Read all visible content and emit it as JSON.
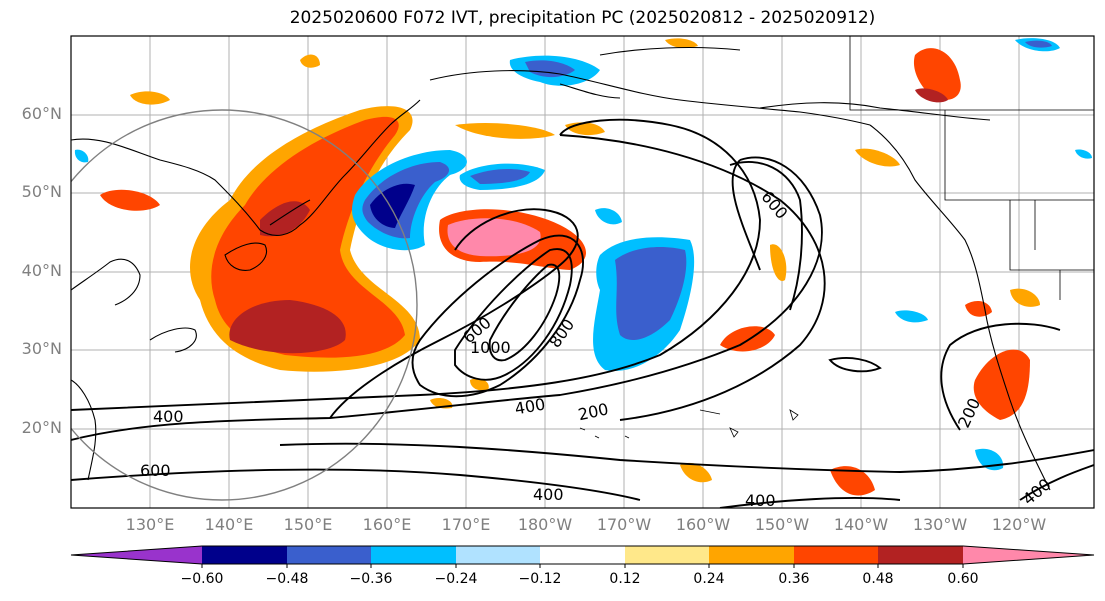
{
  "title": "2025020600 F072 IVT, precipitation PC (2025020812 - 2025020912)",
  "map": {
    "lat_labels": [
      "60°N",
      "50°N",
      "40°N",
      "30°N",
      "20°N"
    ],
    "lon_labels": [
      "130°E",
      "140°E",
      "150°E",
      "160°E",
      "170°E",
      "180°W",
      "170°W",
      "160°W",
      "150°W",
      "140°W",
      "130°W",
      "120°W"
    ],
    "contour_labels": [
      "600",
      "1000",
      "800",
      "400",
      "200",
      "600",
      "400",
      "400",
      "200",
      "400",
      "400",
      "600"
    ]
  },
  "colorbar": {
    "colors": [
      "#9933cc",
      "#00008b",
      "#3a5fcd",
      "#00bfff",
      "#b0e2ff",
      "#ffffff",
      "#ffe88a",
      "#ffa500",
      "#ff4500",
      "#b22222",
      "#ff88aa"
    ],
    "ticks": [
      "−0.60",
      "−0.48",
      "−0.36",
      "−0.24",
      "−0.12",
      "0.12",
      "0.24",
      "0.36",
      "0.48",
      "0.60"
    ]
  },
  "colors": {
    "coast": "#000000",
    "grid": "#b0b0b0",
    "contour": "#000000",
    "circle": "#808080"
  }
}
